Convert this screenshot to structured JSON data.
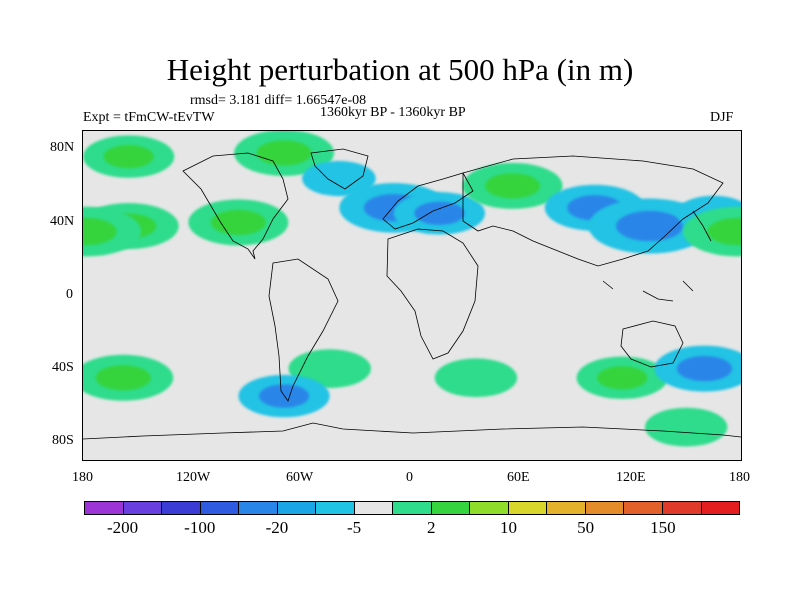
{
  "title": "Height perturbation at 500 hPa (in m)",
  "subtitle_stats": "rmsd= 3.181 diff= 1.66547e-08",
  "experiment": "Expt = tFmCW-tEvTW",
  "period": "1360kyr BP - 1360kyr BP",
  "season": "DJF",
  "lat_labels": [
    "80N",
    "40N",
    "0",
    "40S",
    "80S"
  ],
  "lon_labels": [
    "180",
    "120W",
    "60W",
    "0",
    "60E",
    "120E",
    "180"
  ],
  "colorbar": {
    "colors": [
      "#9b35d8",
      "#6a3fe0",
      "#3b3bd6",
      "#2f5be0",
      "#2a85e8",
      "#1aa6e6",
      "#21c3e4",
      "#e6e6e6",
      "#2fdc8c",
      "#36d43e",
      "#8fdc2a",
      "#d8d52b",
      "#e4b32b",
      "#e48b2a",
      "#e2602a",
      "#e03b2a",
      "#e41e1e"
    ],
    "labels": [
      "-200",
      "-100",
      "-20",
      "-5",
      "2",
      "10",
      "50",
      "150"
    ]
  },
  "chart_data": {
    "type": "heatmap",
    "title": "Height perturbation at 500 hPa (in m)",
    "variable": "geopotential height perturbation",
    "units": "m",
    "level_hPa": 500,
    "x_range": [
      -180,
      180
    ],
    "y_range": [
      -90,
      90
    ],
    "color_levels": [
      -200,
      -100,
      -20,
      -5,
      2,
      10,
      50,
      150
    ],
    "anomaly_regions": [
      {
        "lon": -155,
        "lat": 76,
        "value": 8
      },
      {
        "lon": -70,
        "lat": 78,
        "value": 10
      },
      {
        "lon": -155,
        "lat": 38,
        "value": 10
      },
      {
        "lon": -178,
        "lat": 35,
        "value": 12
      },
      {
        "lon": -95,
        "lat": 40,
        "value": 10
      },
      {
        "lon": -40,
        "lat": 64,
        "value": -4
      },
      {
        "lon": -10,
        "lat": 48,
        "value": -12
      },
      {
        "lon": 15,
        "lat": 45,
        "value": -8
      },
      {
        "lon": 55,
        "lat": 60,
        "value": 10
      },
      {
        "lon": 100,
        "lat": 48,
        "value": -10
      },
      {
        "lon": 130,
        "lat": 38,
        "value": -15
      },
      {
        "lon": 165,
        "lat": 45,
        "value": -4
      },
      {
        "lon": 178,
        "lat": 35,
        "value": 12
      },
      {
        "lon": -158,
        "lat": -45,
        "value": 10
      },
      {
        "lon": -45,
        "lat": -40,
        "value": 6
      },
      {
        "lon": -70,
        "lat": -55,
        "value": -8
      },
      {
        "lon": 35,
        "lat": -45,
        "value": 6
      },
      {
        "lon": 115,
        "lat": -45,
        "value": 8
      },
      {
        "lon": 160,
        "lat": -40,
        "value": -10
      },
      {
        "lon": 150,
        "lat": -72,
        "value": 6
      }
    ]
  }
}
